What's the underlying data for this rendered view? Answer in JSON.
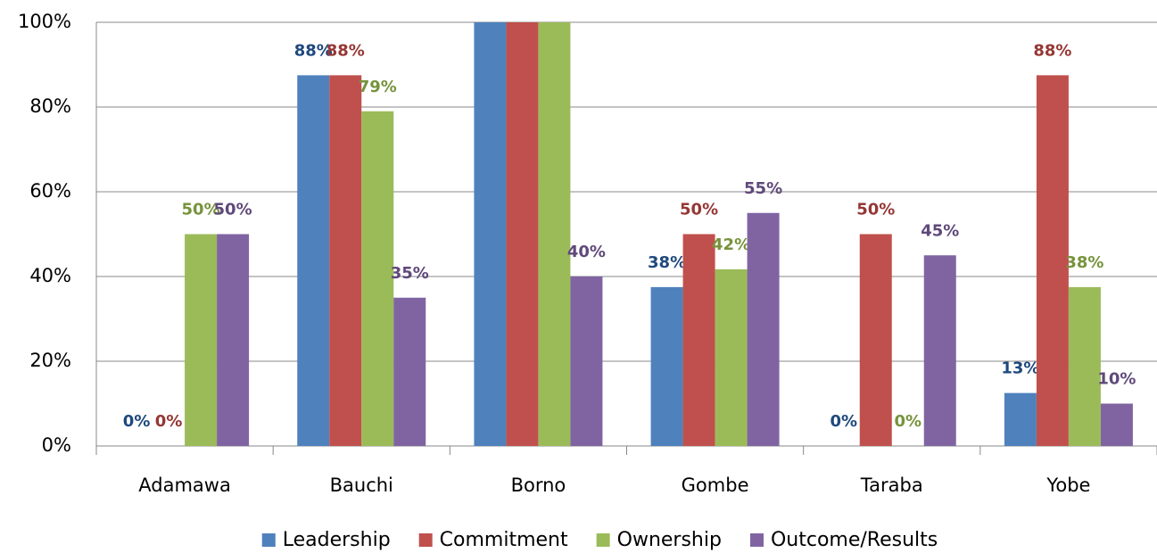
{
  "chart_data": {
    "type": "bar",
    "categories": [
      "Adamawa",
      "Bauchi",
      "Borno",
      "Gombe",
      "Taraba",
      "Yobe"
    ],
    "series": [
      {
        "name": "Leadership",
        "color": "#4f81bd",
        "label_color": "#1f497d",
        "values": [
          0,
          87.5,
          100,
          37.5,
          0,
          12.5
        ],
        "value_labels": [
          "0%",
          "88%",
          null,
          "38%",
          "0%",
          "13%"
        ]
      },
      {
        "name": "Commitment",
        "color": "#c0504d",
        "label_color": "#953735",
        "values": [
          0,
          87.5,
          100,
          50,
          50,
          87.5
        ],
        "value_labels": [
          "0%",
          "88%",
          null,
          "50%",
          "50%",
          "88%"
        ]
      },
      {
        "name": "Ownership",
        "color": "#9bbb59",
        "label_color": "#77933c",
        "values": [
          50,
          79,
          100,
          41.7,
          0,
          37.5
        ],
        "value_labels": [
          "50%",
          "79%",
          null,
          "42%",
          "0%",
          "38%"
        ]
      },
      {
        "name": "Outcome/Results",
        "color": "#8064a2",
        "label_color": "#5f497a",
        "values": [
          50,
          35,
          40,
          55,
          45,
          10
        ],
        "value_labels": [
          "50%",
          "35%",
          "40%",
          "55%",
          "45%",
          "10%"
        ]
      }
    ],
    "ylim": [
      0,
      100
    ],
    "yticks": [
      {
        "value": 0,
        "label": "0%"
      },
      {
        "value": 20,
        "label": "20%"
      },
      {
        "value": 40,
        "label": "40%"
      },
      {
        "value": 60,
        "label": "60%"
      },
      {
        "value": 80,
        "label": "80%"
      },
      {
        "value": 100,
        "label": "100%"
      }
    ],
    "grid": true,
    "legend": "bottom"
  }
}
